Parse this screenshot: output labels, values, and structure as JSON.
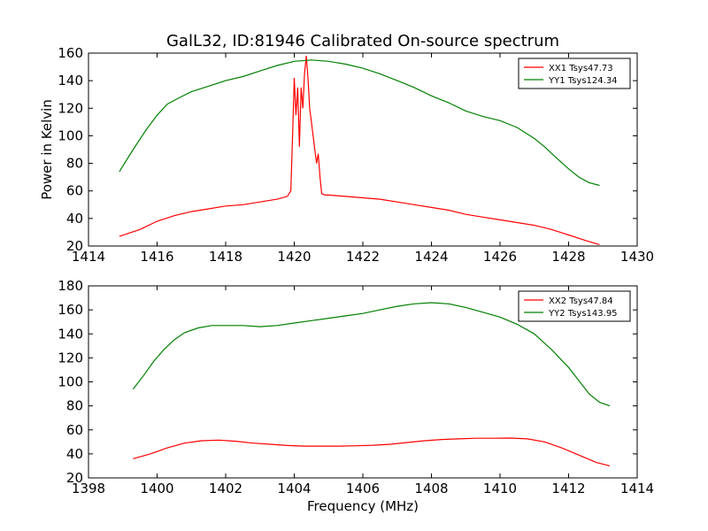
{
  "chart_data": [
    {
      "type": "line",
      "title": "GalL32, ID:81946 Calibrated On-source spectrum",
      "xlabel": "",
      "ylabel": "Power in Kelvin",
      "xlim": [
        1414,
        1430
      ],
      "ylim": [
        20,
        160
      ],
      "xticks": [
        1414,
        1416,
        1418,
        1420,
        1422,
        1424,
        1426,
        1428,
        1430
      ],
      "yticks": [
        20,
        40,
        60,
        80,
        100,
        120,
        140,
        160
      ],
      "legend_position": "top-right",
      "series": [
        {
          "name": "XX1 Tsys47.73",
          "color": "#ff0000",
          "x": [
            1414.9,
            1415.5,
            1416.0,
            1416.5,
            1417.0,
            1417.5,
            1418.0,
            1418.5,
            1419.0,
            1419.5,
            1419.8,
            1419.9,
            1419.95,
            1420.0,
            1420.05,
            1420.1,
            1420.15,
            1420.2,
            1420.25,
            1420.3,
            1420.35,
            1420.4,
            1420.45,
            1420.5,
            1420.55,
            1420.6,
            1420.65,
            1420.7,
            1420.75,
            1420.8,
            1420.9,
            1421.0,
            1421.5,
            1422.0,
            1422.5,
            1423.0,
            1423.5,
            1424.0,
            1424.5,
            1425.0,
            1425.5,
            1426.0,
            1426.5,
            1427.0,
            1427.5,
            1428.0,
            1428.5,
            1428.9
          ],
          "y": [
            27,
            32,
            38,
            42,
            45,
            47,
            49,
            50,
            52,
            54,
            56,
            60,
            100,
            142,
            115,
            135,
            92,
            135,
            120,
            145,
            158,
            142,
            120,
            110,
            100,
            90,
            80,
            87,
            70,
            58,
            57,
            57,
            56,
            55,
            54,
            52,
            50,
            48,
            46,
            43,
            41,
            39,
            37,
            35,
            32,
            28,
            24,
            21
          ]
        },
        {
          "name": "YY1 Tsys124.34",
          "color": "#008000",
          "x": [
            1414.9,
            1415.3,
            1415.7,
            1416.0,
            1416.3,
            1416.6,
            1417.0,
            1417.5,
            1418.0,
            1418.5,
            1419.0,
            1419.5,
            1420.0,
            1420.5,
            1421.0,
            1421.5,
            1422.0,
            1422.5,
            1423.0,
            1423.5,
            1424.0,
            1424.5,
            1425.0,
            1425.5,
            1426.0,
            1426.5,
            1427.0,
            1427.3,
            1427.6,
            1428.0,
            1428.3,
            1428.6,
            1428.9
          ],
          "y": [
            74,
            90,
            105,
            115,
            123,
            127,
            132,
            136,
            140,
            143,
            147,
            151,
            154,
            155,
            154,
            152,
            149,
            145,
            140,
            135,
            129,
            124,
            118,
            114,
            111,
            106,
            98,
            92,
            85,
            76,
            70,
            66,
            64
          ]
        }
      ]
    },
    {
      "type": "line",
      "title": "",
      "xlabel": "Frequency (MHz)",
      "ylabel": "",
      "xlim": [
        1398,
        1414
      ],
      "ylim": [
        20,
        180
      ],
      "xticks": [
        1398,
        1400,
        1402,
        1404,
        1406,
        1408,
        1410,
        1412,
        1414
      ],
      "yticks": [
        20,
        40,
        60,
        80,
        100,
        120,
        140,
        160,
        180
      ],
      "legend_position": "top-right",
      "series": [
        {
          "name": "XX2 Tsys47.84",
          "color": "#ff0000",
          "x": [
            1399.3,
            1399.8,
            1400.3,
            1400.8,
            1401.3,
            1401.8,
            1402.3,
            1402.8,
            1403.3,
            1403.8,
            1404.3,
            1404.8,
            1405.3,
            1405.8,
            1406.3,
            1406.8,
            1407.3,
            1407.8,
            1408.3,
            1408.8,
            1409.3,
            1409.8,
            1410.3,
            1410.8,
            1411.3,
            1411.8,
            1412.3,
            1412.8,
            1413.2
          ],
          "y": [
            36,
            40,
            45,
            49,
            51,
            51.5,
            50.5,
            49,
            48,
            47,
            46.5,
            46.5,
            46.5,
            46.8,
            47.2,
            48,
            49.5,
            51,
            52,
            52.5,
            53,
            53,
            53.2,
            52.5,
            50,
            45,
            39,
            33,
            30
          ]
        },
        {
          "name": "YY2 Tsys143.95",
          "color": "#008000",
          "x": [
            1399.3,
            1399.6,
            1399.9,
            1400.2,
            1400.5,
            1400.8,
            1401.2,
            1401.6,
            1402.0,
            1402.5,
            1403.0,
            1403.5,
            1404.0,
            1404.5,
            1405.0,
            1405.5,
            1406.0,
            1406.5,
            1407.0,
            1407.5,
            1408.0,
            1408.5,
            1409.0,
            1409.5,
            1410.0,
            1410.5,
            1411.0,
            1411.5,
            1412.0,
            1412.3,
            1412.6,
            1412.9,
            1413.2
          ],
          "y": [
            94,
            105,
            117,
            127,
            135,
            141,
            145,
            147,
            147,
            147,
            146,
            147,
            149,
            151,
            153,
            155,
            157,
            160,
            163,
            165,
            166,
            165,
            162,
            158,
            154,
            148,
            140,
            127,
            112,
            101,
            90,
            83,
            80
          ]
        }
      ]
    }
  ]
}
